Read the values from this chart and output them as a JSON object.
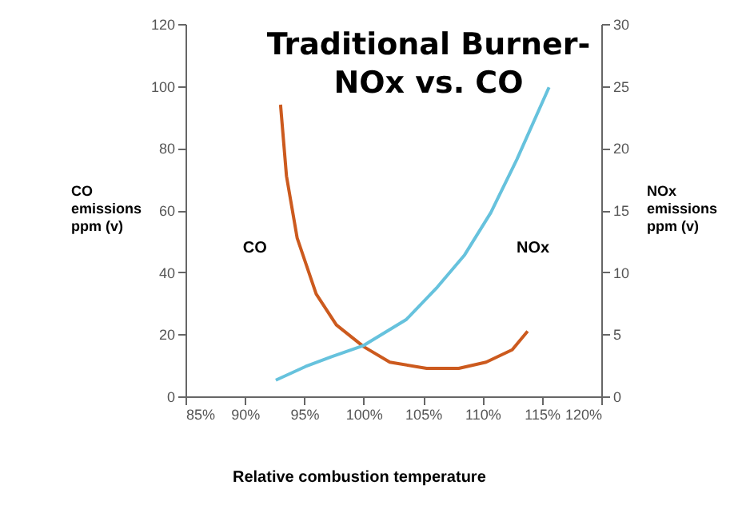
{
  "chart_data": {
    "type": "line",
    "title": "Traditional Burner-\nNOx vs. CO",
    "xlabel": "Relative combustion temperature",
    "ylabel": "CO\nemissions\nppm (v)",
    "y2label": "NOx\nemissions\nppm (v)",
    "xlim": [
      85,
      120
    ],
    "xticks": [
      {
        "value": 85,
        "label": "85%"
      },
      {
        "value": 90,
        "label": "90%"
      },
      {
        "value": 95,
        "label": "95%"
      },
      {
        "value": 100,
        "label": "100%"
      },
      {
        "value": 105,
        "label": "105%"
      },
      {
        "value": 110,
        "label": "110%"
      },
      {
        "value": 115,
        "label": "115%"
      },
      {
        "value": 120,
        "label": "120%"
      }
    ],
    "ylim": [
      0,
      120
    ],
    "yticks": [
      0,
      20,
      40,
      60,
      80,
      100,
      120
    ],
    "y2lim": [
      0,
      30
    ],
    "y2ticks": [
      0,
      5,
      10,
      15,
      20,
      25,
      30
    ],
    "grid": false,
    "legend": false,
    "marker": "none",
    "line_style": "solid",
    "series": [
      {
        "name": "CO",
        "color": "#cc5a1e",
        "x": [
          93.0,
          93.5,
          94.4,
          96.0,
          97.7,
          100.0,
          102.2,
          105.3,
          108.0,
          110.3,
          112.5,
          113.8
        ],
        "values": [
          94,
          71,
          51,
          33,
          23,
          16,
          11,
          9,
          9,
          11,
          15,
          21
        ]
      },
      {
        "name": "NOx",
        "color": "#66c2dd",
        "axis": "y2",
        "x": [
          92.6,
          95.1,
          97.3,
          100.0,
          103.6,
          106.2,
          108.5,
          110.7,
          112.9,
          115.6
        ],
        "values": [
          1.3,
          2.4,
          3.2,
          4.1,
          6.2,
          8.8,
          11.4,
          14.8,
          19.1,
          24.9
        ]
      }
    ]
  }
}
